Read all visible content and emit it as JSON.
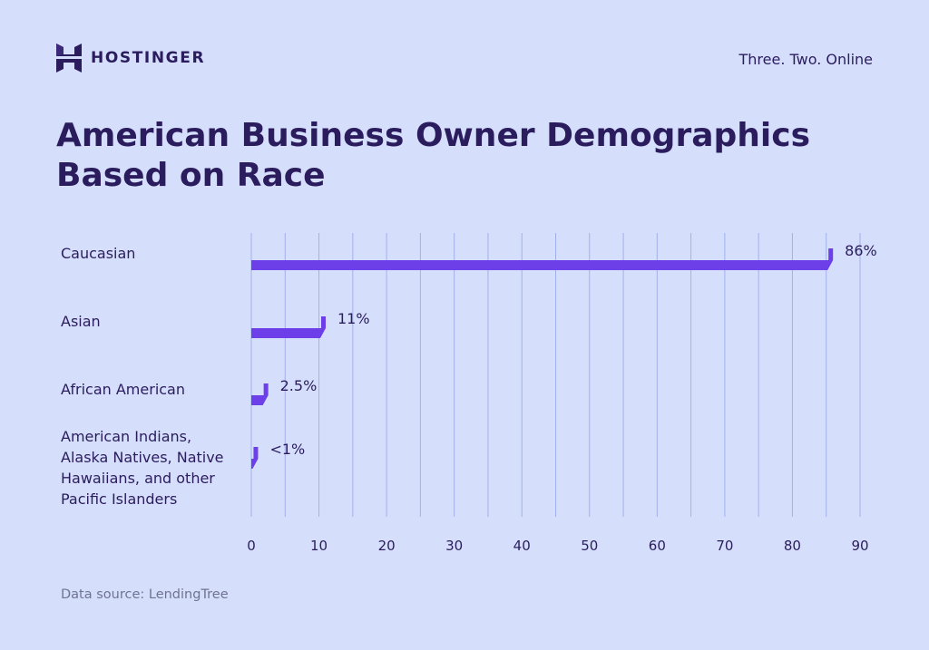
{
  "brand": {
    "name": "HOSTINGER",
    "logo_icon": "hostinger-logo-icon"
  },
  "tagline": "Three. Two. Online",
  "title": "American Business Owner Demographics Based on Race",
  "source": "Data source: LendingTree",
  "colors": {
    "background": "#d5dffb",
    "bar": "#6d3fe8",
    "bar_dark": "#5325c9",
    "text": "#2b1c5e",
    "grid": "#a3b0ee",
    "muted": "#6f7396"
  },
  "chart_data": {
    "type": "bar",
    "orientation": "horizontal",
    "categories": [
      "Caucasian",
      "Asian",
      "African American",
      "American Indians, Alaska Natives, Native Hawaiians, and other Pacific Islanders"
    ],
    "values": [
      86,
      11,
      2.5,
      1
    ],
    "data_labels": [
      "86%",
      "11%",
      "2.5%",
      "<1%"
    ],
    "xlim": [
      0,
      90
    ],
    "xticks": [
      0,
      10,
      20,
      30,
      40,
      50,
      60,
      70,
      80,
      90
    ],
    "minor_grid_step": 5,
    "grid": true,
    "legend": "none",
    "title": "American Business Owner Demographics Based on Race",
    "xlabel": "",
    "ylabel": ""
  }
}
